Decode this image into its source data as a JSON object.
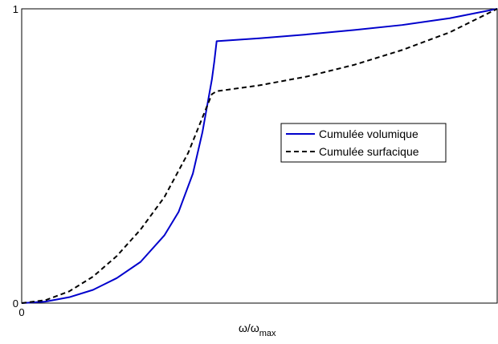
{
  "chart_data": {
    "type": "line",
    "title": "",
    "xlabel": "ω/ω",
    "xlabel_sub": "max",
    "ylabel": "",
    "xlim": [
      0,
      1
    ],
    "ylim": [
      0,
      1
    ],
    "x_ticks": [
      {
        "value": 0,
        "label": "0"
      }
    ],
    "y_ticks": [
      {
        "value": 0,
        "label": "0"
      },
      {
        "value": 1,
        "label": "1"
      }
    ],
    "grid": false,
    "legend_position": "center-right",
    "series": [
      {
        "name": "Cumulée volumique",
        "color": "#0000cc",
        "style": "solid",
        "x": [
          0,
          0.05,
          0.1,
          0.15,
          0.2,
          0.25,
          0.3,
          0.33,
          0.36,
          0.38,
          0.39,
          0.4,
          0.405,
          0.41,
          0.5,
          0.6,
          0.7,
          0.8,
          0.9,
          1.0
        ],
        "y": [
          0,
          0.005,
          0.02,
          0.045,
          0.085,
          0.14,
          0.23,
          0.31,
          0.44,
          0.58,
          0.67,
          0.76,
          0.82,
          0.89,
          0.9,
          0.913,
          0.928,
          0.945,
          0.968,
          1.0
        ]
      },
      {
        "name": "Cumulée surfacique",
        "color": "#000000",
        "style": "dashed",
        "x": [
          0,
          0.05,
          0.1,
          0.15,
          0.2,
          0.25,
          0.3,
          0.35,
          0.4,
          0.41,
          0.5,
          0.6,
          0.7,
          0.8,
          0.9,
          1.0
        ],
        "y": [
          0,
          0.01,
          0.04,
          0.09,
          0.16,
          0.25,
          0.36,
          0.51,
          0.71,
          0.72,
          0.74,
          0.77,
          0.81,
          0.86,
          0.92,
          1.0
        ]
      }
    ]
  }
}
